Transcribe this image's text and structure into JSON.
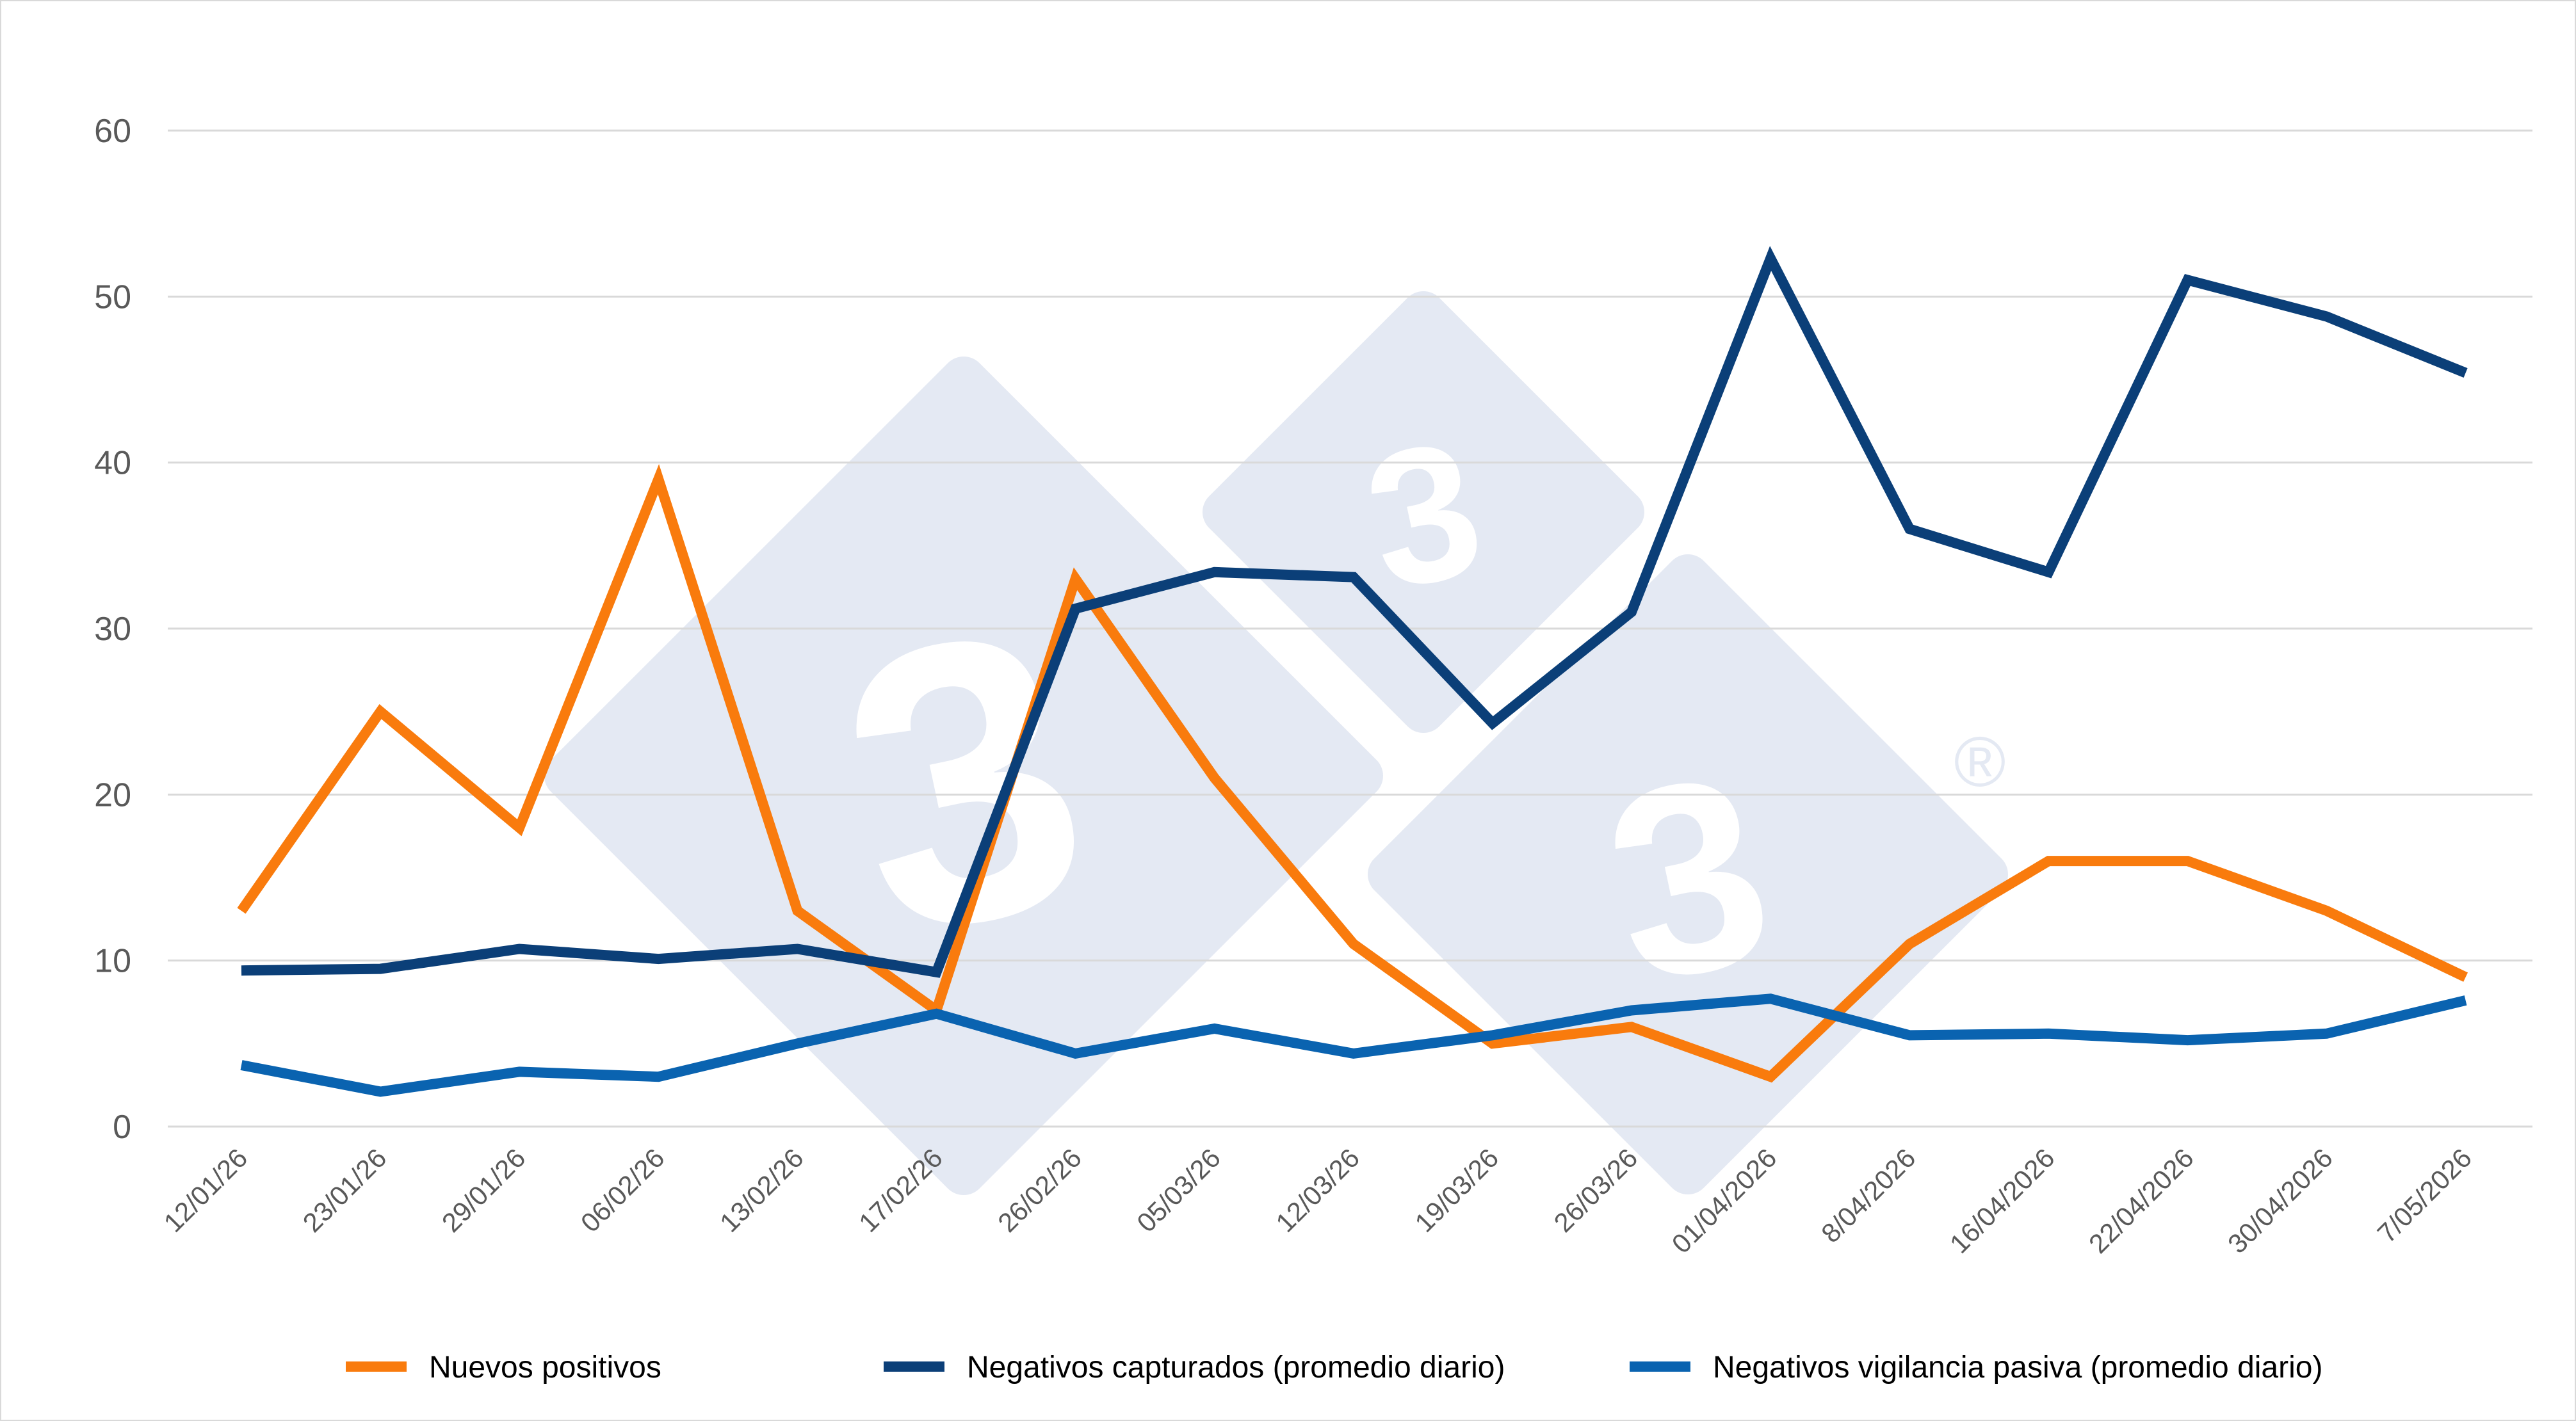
{
  "chart_data": {
    "type": "line",
    "title": "",
    "xlabel": "",
    "ylabel": "",
    "ylim": [
      0,
      60
    ],
    "yticks": [
      "0",
      "10",
      "20",
      "30",
      "40",
      "50",
      "60"
    ],
    "grid": true,
    "legend_position": "bottom",
    "categories": [
      "12/01/26",
      "23/01/26",
      "29/01/26",
      "06/02/26",
      "13/02/26",
      "17/02/26",
      "26/02/26",
      "05/03/26",
      "12/03/26",
      "19/03/26",
      "26/03/26",
      "01/04/2026",
      "8/04/2026",
      "16/04/2026",
      "22/04/2026",
      "30/04/2026",
      "7/05/2026"
    ],
    "series": [
      {
        "name": "Nuevos positivos",
        "color": "#f97b0d",
        "values": [
          13,
          25,
          18,
          39,
          13,
          7,
          33,
          21,
          11,
          5,
          6,
          3,
          11,
          16,
          16,
          13,
          9
        ]
      },
      {
        "name": "Negativos capturados (promedio diario)",
        "color": "#0b3f78",
        "values": [
          9.4,
          9.5,
          10.7,
          10.1,
          10.7,
          9.3,
          31.2,
          33.4,
          33.1,
          24.3,
          31.0,
          52.3,
          36.0,
          33.4,
          51.0,
          48.8,
          45.4
        ]
      },
      {
        "name": "Negativos vigilancia pasiva (promedio diario)",
        "color": "#0a63b0",
        "values": [
          3.7,
          2.1,
          3.3,
          3.0,
          5.0,
          6.8,
          4.4,
          5.9,
          4.4,
          5.5,
          7.0,
          7.7,
          5.5,
          5.6,
          5.2,
          5.6,
          7.6
        ]
      }
    ]
  },
  "watermark": {
    "digit": "3",
    "mark": "®",
    "color": "#e4e9f3"
  }
}
